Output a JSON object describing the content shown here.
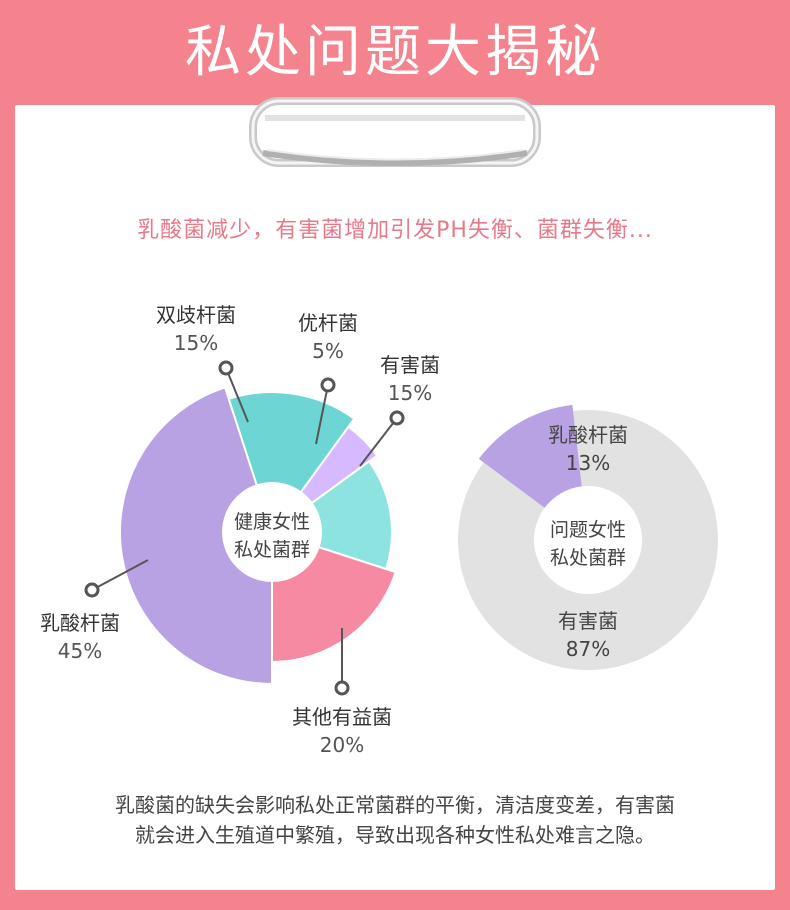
{
  "page_title": "私处问题大揭秘",
  "subtitle": "乳酸菌减少，有害菌增加引发PH失衡、菌群失衡...",
  "description": [
    "乳酸菌的缺失会影响私处正常菌群的平衡，清洁度变差，有害菌",
    "就会进入生殖道中繁殖，导致出现各种女性私处难言之隐。"
  ],
  "colors": {
    "banner": "#f4838d",
    "lactobacillus": "#b8a2e3",
    "bifidobacterium": "#6dd5d3",
    "optimal_bacillus": "#d6b9ff",
    "harmful": "#8de3e0",
    "other_beneficial": "#f58aa2",
    "harmful_gray": "#e2e2e2"
  },
  "chart_data": [
    {
      "type": "pie",
      "center_label": [
        "健康女性",
        "私处菌群"
      ],
      "slices": [
        {
          "name": "乳酸杆菌",
          "value": 45,
          "label": "45%"
        },
        {
          "name": "双歧杆菌",
          "value": 15,
          "label": "15%"
        },
        {
          "name": "优杆菌",
          "value": 5,
          "label": "5%"
        },
        {
          "name": "有害菌",
          "value": 15,
          "label": "15%"
        },
        {
          "name": "其他有益菌",
          "value": 20,
          "label": "20%"
        }
      ]
    },
    {
      "type": "pie",
      "center_label": [
        "问题女性",
        "私处菌群"
      ],
      "slices": [
        {
          "name": "乳酸杆菌",
          "value": 13,
          "label": "13%"
        },
        {
          "name": "有害菌",
          "value": 87,
          "label": "87%"
        }
      ]
    }
  ]
}
